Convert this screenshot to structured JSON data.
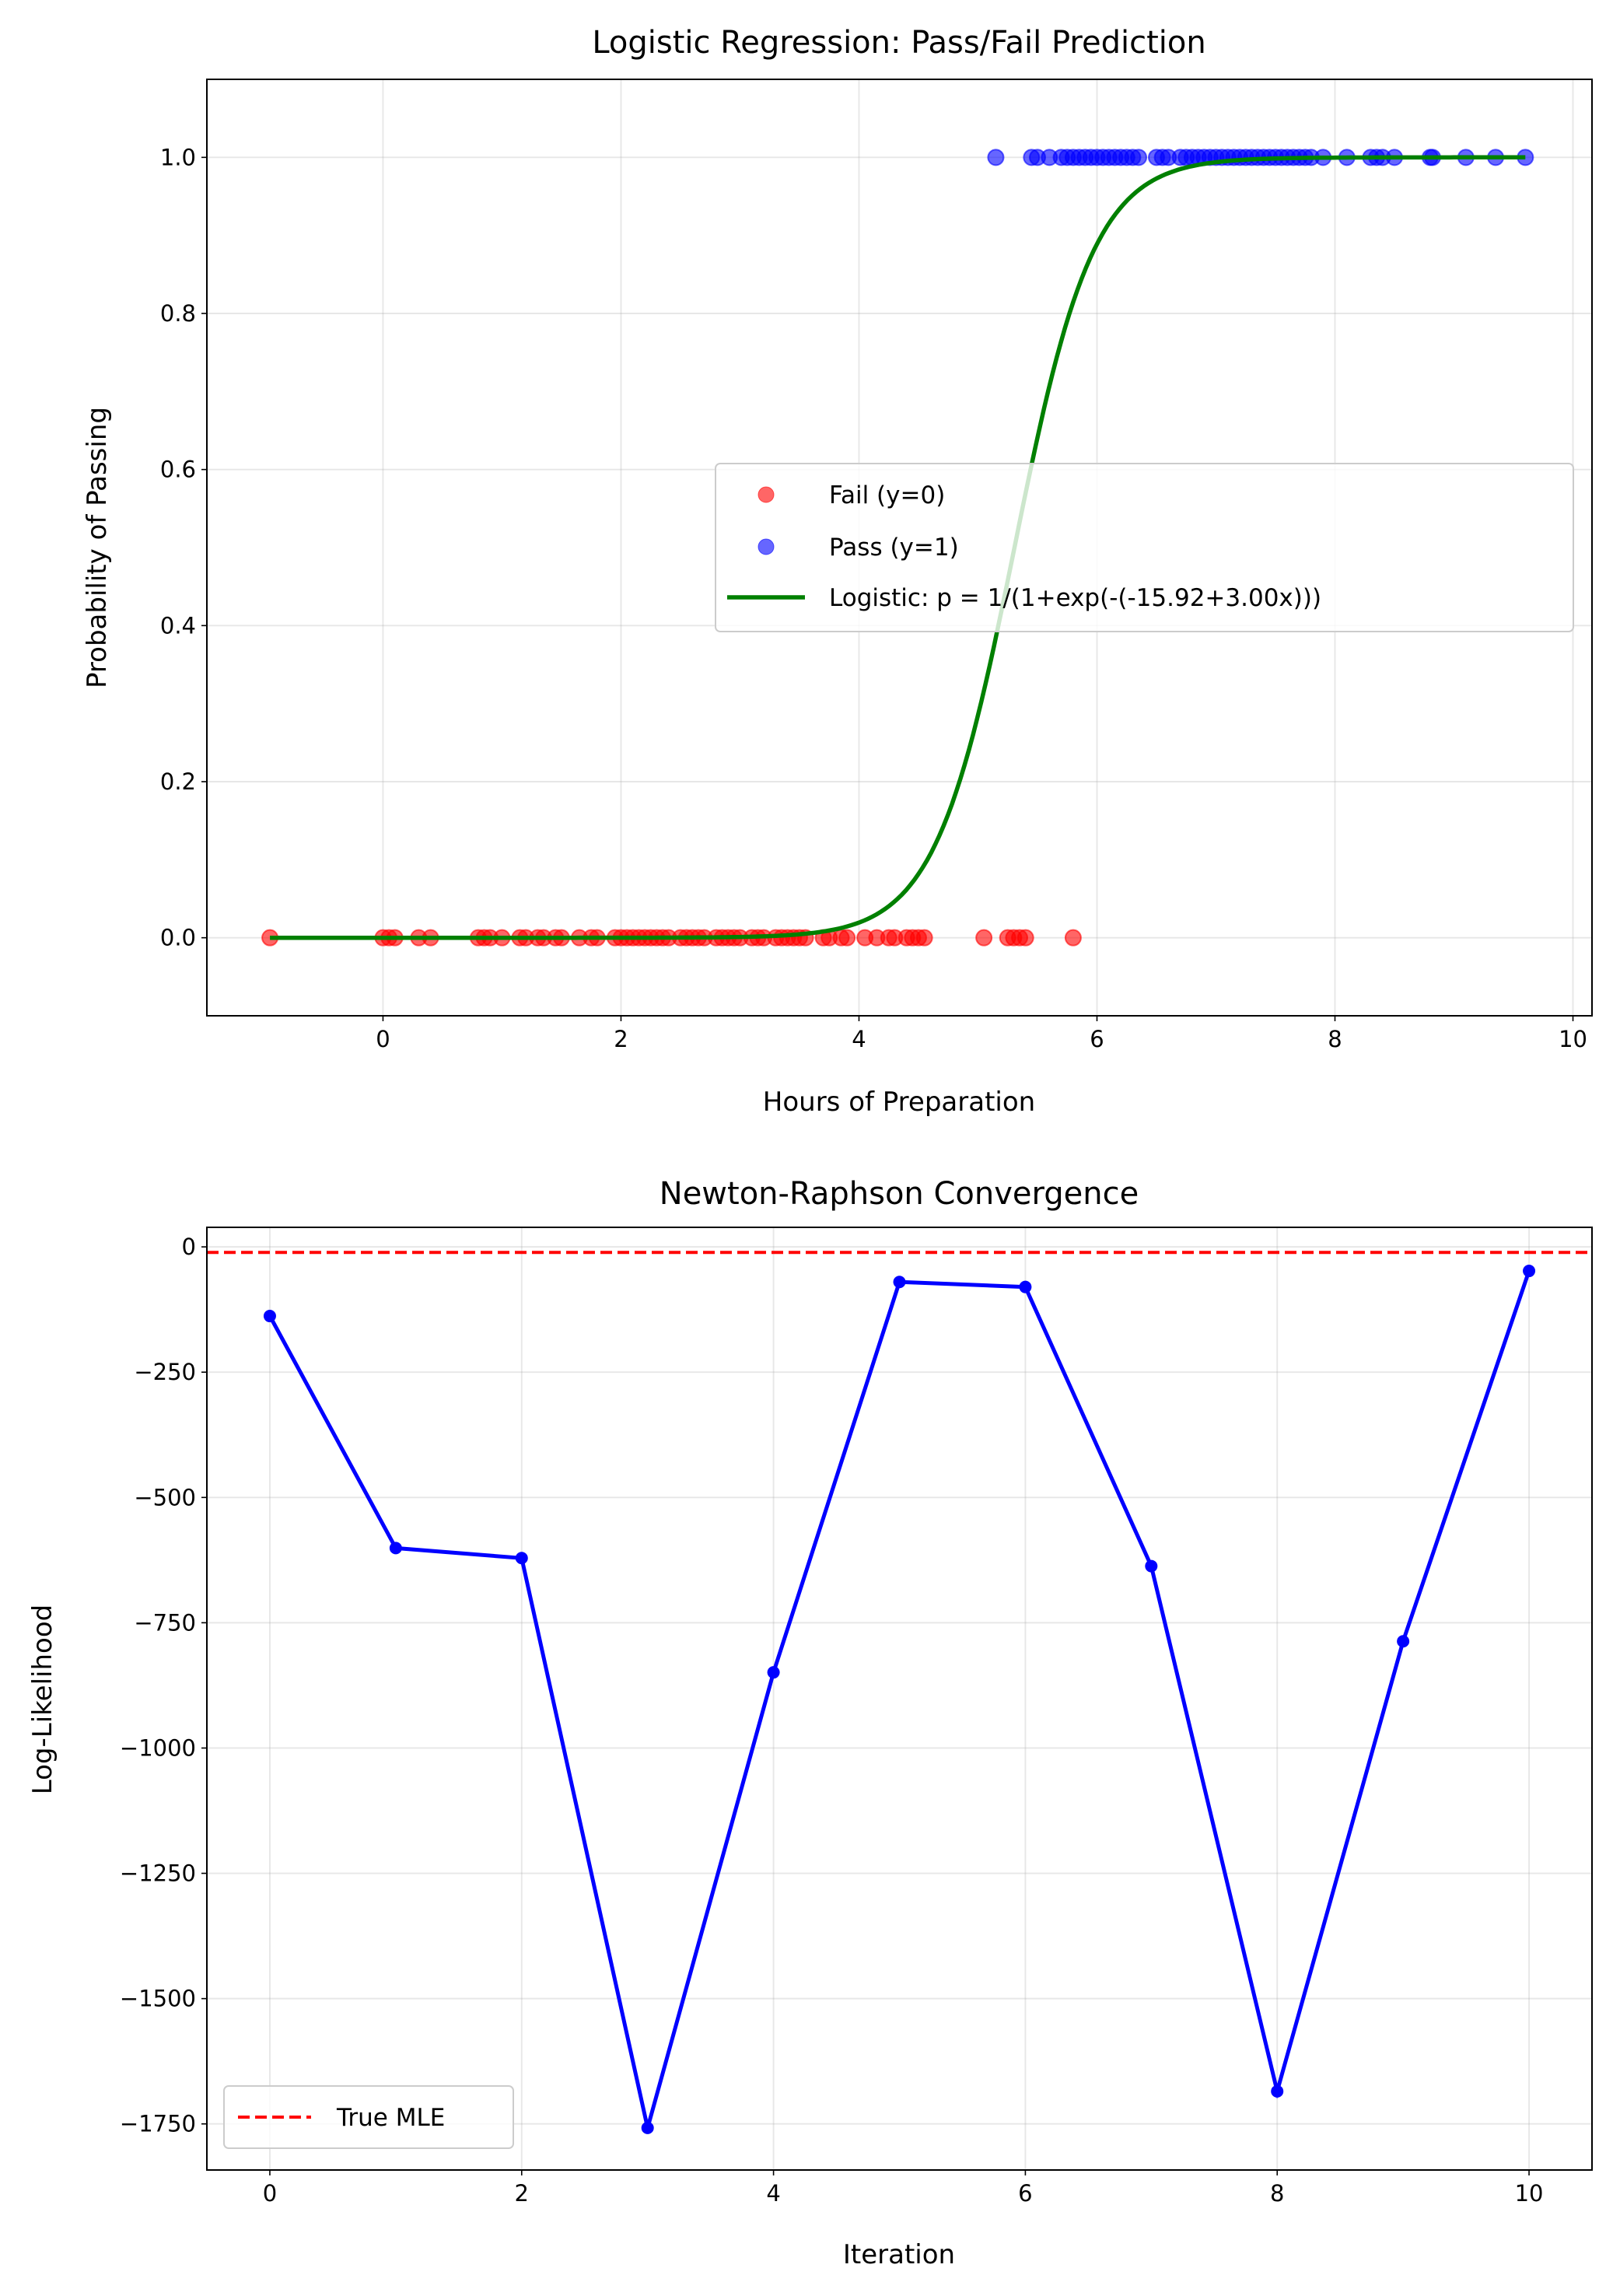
{
  "chart_data": [
    {
      "type": "scatter",
      "title": "Logistic Regression: Pass/Fail Prediction",
      "xlabel": "Hours of Preparation",
      "ylabel": "Probability of Passing",
      "xlim": [
        -1.48,
        10.16
      ],
      "ylim": [
        -0.1,
        1.1
      ],
      "xticks": [
        0,
        2,
        4,
        6,
        8,
        10
      ],
      "yticks": [
        0.0,
        0.2,
        0.4,
        0.6,
        0.8,
        1.0
      ],
      "xtick_labels": [
        "0",
        "2",
        "4",
        "6",
        "8",
        "10"
      ],
      "ytick_labels": [
        "0.0",
        "0.2",
        "0.4",
        "0.6",
        "0.8",
        "1.0"
      ],
      "grid": true,
      "legend_position": "center-right",
      "series": [
        {
          "name": "Fail (y=0)",
          "kind": "scatter",
          "color": "#ff0000",
          "y": 0,
          "x": [
            -0.95,
            0.0,
            0.05,
            0.1,
            0.3,
            0.4,
            0.8,
            0.85,
            0.9,
            1.0,
            1.15,
            1.2,
            1.3,
            1.35,
            1.45,
            1.5,
            1.65,
            1.75,
            1.8,
            1.95,
            2.0,
            2.05,
            2.1,
            2.15,
            2.2,
            2.25,
            2.3,
            2.35,
            2.4,
            2.5,
            2.55,
            2.6,
            2.65,
            2.7,
            2.8,
            2.85,
            2.9,
            2.95,
            3.0,
            3.1,
            3.15,
            3.2,
            3.3,
            3.35,
            3.4,
            3.45,
            3.5,
            3.55,
            3.7,
            3.75,
            3.85,
            3.9,
            4.05,
            4.15,
            4.25,
            4.3,
            4.4,
            4.45,
            4.5,
            4.55,
            5.05,
            5.25,
            5.3,
            5.35,
            5.4,
            5.8
          ]
        },
        {
          "name": "Pass (y=1)",
          "kind": "scatter",
          "color": "#0000ff",
          "y": 1,
          "x": [
            5.15,
            5.45,
            5.5,
            5.6,
            5.7,
            5.75,
            5.8,
            5.85,
            5.9,
            5.95,
            6.0,
            6.05,
            6.1,
            6.15,
            6.2,
            6.25,
            6.3,
            6.35,
            6.5,
            6.55,
            6.6,
            6.7,
            6.75,
            6.8,
            6.85,
            6.9,
            6.95,
            7.0,
            7.05,
            7.1,
            7.15,
            7.2,
            7.25,
            7.3,
            7.35,
            7.4,
            7.45,
            7.5,
            7.55,
            7.6,
            7.65,
            7.7,
            7.75,
            7.8,
            7.9,
            8.1,
            8.3,
            8.35,
            8.4,
            8.5,
            8.8,
            8.82,
            9.1,
            9.35,
            9.6
          ]
        },
        {
          "name": "Logistic: p = 1/(1+exp(-(-15.92+3.00x)))",
          "kind": "line",
          "color": "#008000",
          "intercept": -15.92,
          "slope": 3.0,
          "x_range": [
            -0.95,
            9.6
          ]
        }
      ]
    },
    {
      "type": "line",
      "title": "Newton-Raphson Convergence",
      "xlabel": "Iteration",
      "ylabel": "Log-Likelihood",
      "xlim": [
        -0.5,
        10.5
      ],
      "ylim": [
        -1842,
        39
      ],
      "xticks": [
        0,
        2,
        4,
        6,
        8,
        10
      ],
      "yticks": [
        0,
        -250,
        -500,
        -750,
        -1000,
        -1250,
        -1500,
        -1750
      ],
      "xtick_labels": [
        "0",
        "2",
        "4",
        "6",
        "8",
        "10"
      ],
      "ytick_labels": [
        "0",
        "−250",
        "−500",
        "−750",
        "−1000",
        "−1250",
        "−1500",
        "−1750"
      ],
      "grid": true,
      "legend_position": "lower-left",
      "x": [
        0,
        1,
        2,
        3,
        4,
        5,
        6,
        7,
        8,
        9,
        10
      ],
      "series": [
        {
          "kind": "line",
          "color": "#0000ff",
          "values": [
            -138,
            -601,
            -621,
            -1758,
            -849,
            -70,
            -80,
            -637,
            -1685,
            -787,
            -48
          ]
        },
        {
          "name": "True MLE",
          "kind": "hline",
          "color": "#ff0000",
          "value": -11
        }
      ]
    }
  ]
}
